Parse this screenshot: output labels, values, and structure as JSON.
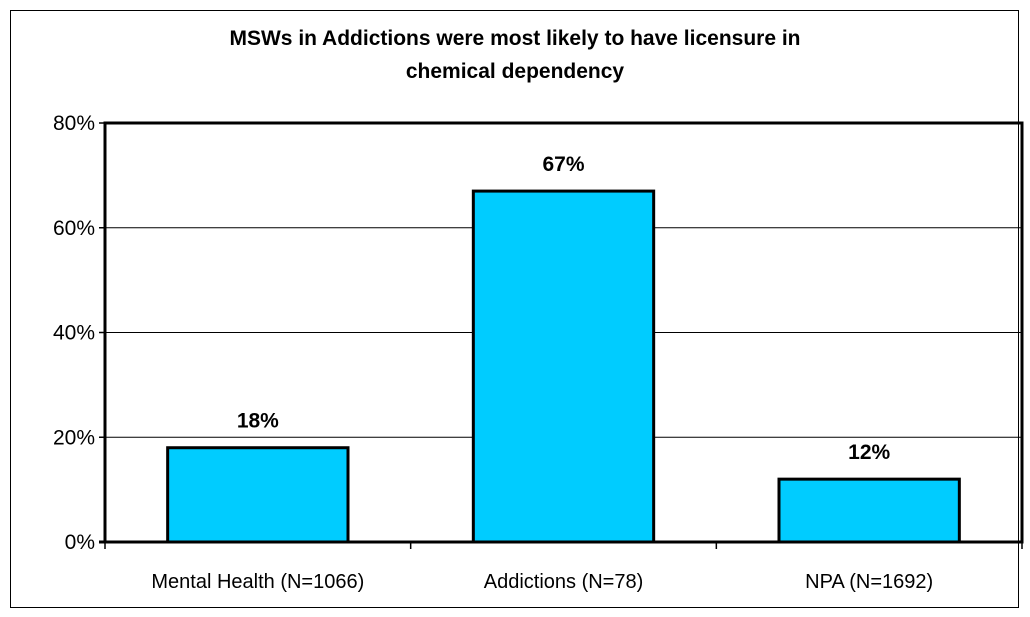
{
  "chart_data": {
    "type": "bar",
    "title": "MSWs in Addictions were most likely to have licensure in\nchemical dependency",
    "categories": [
      "Mental Health (N=1066)",
      "Addictions (N=78)",
      "NPA (N=1692)"
    ],
    "values": [
      18,
      67,
      12
    ],
    "data_labels": [
      "18%",
      "67%",
      "12%"
    ],
    "ylim": [
      0,
      80
    ],
    "yticks": [
      0,
      20,
      40,
      60,
      80
    ],
    "ytick_labels": [
      "0%",
      "20%",
      "40%",
      "60%",
      "80%"
    ],
    "grid": true,
    "legend": "none",
    "colors": {
      "bar": "#00CCFF",
      "bar_outline": "#000000",
      "grid": "#000000"
    }
  }
}
